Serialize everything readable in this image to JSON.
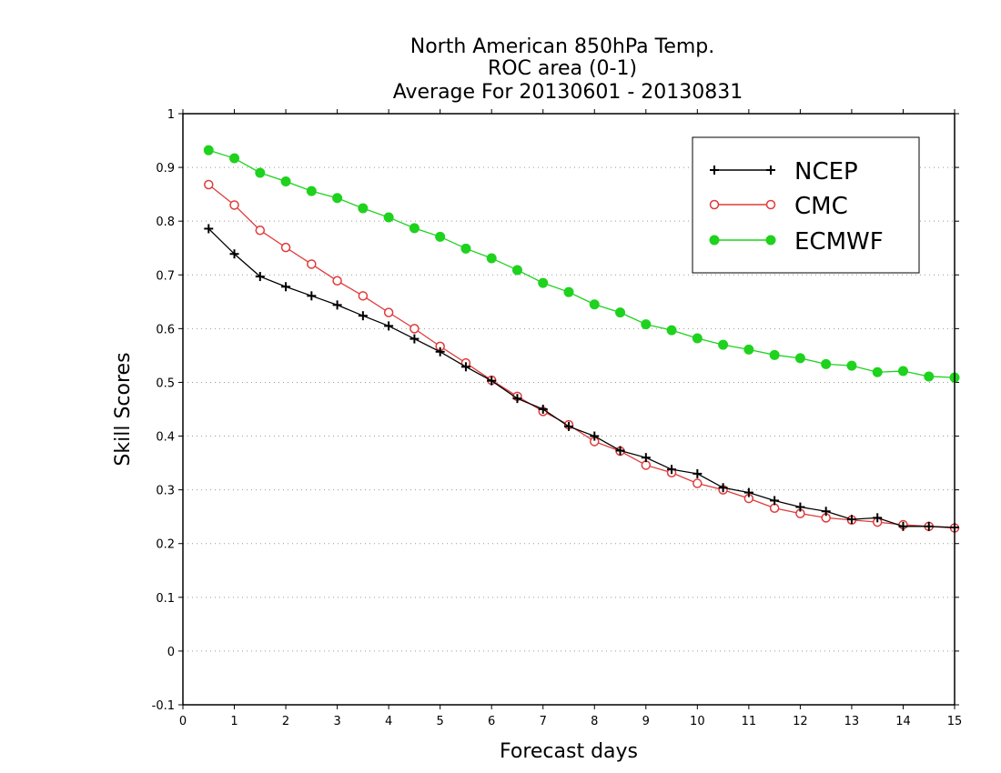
{
  "chart_data": {
    "type": "line",
    "title": [
      "North American 850hPa Temp.",
      "ROC area (0-1)",
      "Average For 20130601 - 20130831"
    ],
    "xlabel": "Forecast days",
    "ylabel": "Skill Scores",
    "xlim": [
      0,
      15
    ],
    "ylim": [
      -0.1,
      1
    ],
    "xticks": [
      0,
      1,
      2,
      3,
      4,
      5,
      6,
      7,
      8,
      9,
      10,
      11,
      12,
      13,
      14,
      15
    ],
    "yticks": [
      -0.1,
      0,
      0.1,
      0.2,
      0.3,
      0.4,
      0.5,
      0.6,
      0.7,
      0.8,
      0.9,
      1
    ],
    "ytick_labels": [
      "-0.1",
      "0",
      "0.1",
      "0.2",
      "0.3",
      "0.4",
      "0.5",
      "0.6",
      "0.7",
      "0.8",
      "0.9",
      "1"
    ],
    "grid": "horizontal dotted",
    "legend_position": "top-right",
    "x": [
      0.5,
      1,
      1.5,
      2,
      2.5,
      3,
      3.5,
      4,
      4.5,
      5,
      5.5,
      6,
      6.5,
      7,
      7.5,
      8,
      8.5,
      9,
      9.5,
      10,
      10.5,
      11,
      11.5,
      12,
      12.5,
      13,
      13.5,
      14,
      14.5,
      15
    ],
    "series": [
      {
        "name": "NCEP",
        "color": "#000000",
        "marker": "plus",
        "values": [
          0.786,
          0.739,
          0.697,
          0.678,
          0.661,
          0.644,
          0.624,
          0.605,
          0.581,
          0.557,
          0.529,
          0.503,
          0.47,
          0.45,
          0.418,
          0.4,
          0.373,
          0.36,
          0.338,
          0.33,
          0.304,
          0.295,
          0.28,
          0.268,
          0.26,
          0.245,
          0.248,
          0.232,
          0.232,
          0.23
        ]
      },
      {
        "name": "CMC",
        "color": "#e03a3a",
        "marker": "open-circle",
        "values": [
          0.868,
          0.83,
          0.783,
          0.751,
          0.72,
          0.689,
          0.661,
          0.63,
          0.6,
          0.567,
          0.536,
          0.504,
          0.474,
          0.446,
          0.421,
          0.39,
          0.372,
          0.346,
          0.332,
          0.312,
          0.3,
          0.284,
          0.266,
          0.256,
          0.248,
          0.244,
          0.24,
          0.235,
          0.232,
          0.229
        ]
      },
      {
        "name": "ECMWF",
        "color": "#1ed21e",
        "marker": "filled-circle",
        "values": [
          0.932,
          0.917,
          0.89,
          0.874,
          0.856,
          0.843,
          0.824,
          0.807,
          0.787,
          0.771,
          0.749,
          0.731,
          0.709,
          0.685,
          0.668,
          0.645,
          0.63,
          0.608,
          0.597,
          0.582,
          0.57,
          0.561,
          0.551,
          0.545,
          0.534,
          0.531,
          0.519,
          0.521,
          0.511,
          0.509
        ]
      }
    ]
  }
}
